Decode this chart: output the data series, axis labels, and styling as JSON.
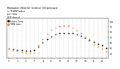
{
  "title": "Milwaukee Weather Outdoor Temperature\nvs THSW Index\nper Hour\n(24 Hours)",
  "background_color": "#ffffff",
  "xlim": [
    0.5,
    24.5
  ],
  "ylim": [
    30,
    105
  ],
  "temp_hours": [
    1,
    2,
    3,
    4,
    5,
    6,
    7,
    8,
    9,
    10,
    11,
    12,
    13,
    14,
    15,
    16,
    17,
    18,
    19,
    20,
    21,
    22,
    23,
    24
  ],
  "temp_values": [
    48,
    47,
    46,
    45,
    44,
    44,
    45,
    52,
    60,
    66,
    71,
    75,
    77,
    78,
    78,
    77,
    75,
    72,
    68,
    65,
    61,
    57,
    54,
    50
  ],
  "thsw_hours": [
    1,
    2,
    3,
    4,
    5,
    6,
    7,
    8,
    9,
    10,
    11,
    12,
    13,
    14,
    15,
    16,
    17,
    18,
    19,
    20,
    21,
    22,
    23,
    24
  ],
  "thsw_values": [
    48,
    46,
    44,
    42,
    41,
    40,
    41,
    54,
    66,
    76,
    84,
    88,
    90,
    91,
    91,
    88,
    83,
    78,
    70,
    63,
    56,
    52,
    48,
    43
  ],
  "temp_color": "#000000",
  "thsw_orange": "#ff8800",
  "thsw_red": "#ff0000",
  "thsw_red_hours": [
    13,
    14,
    15
  ],
  "grid_color": "#aaaaaa",
  "y_ticks": [
    40,
    50,
    60,
    70,
    80,
    90,
    100
  ],
  "x_tick_hours": [
    1,
    3,
    5,
    7,
    9,
    11,
    13,
    15,
    17,
    19,
    21,
    23
  ],
  "x_tick_labels": [
    "1",
    "3",
    "5",
    "7",
    "9",
    "11",
    "13",
    "15",
    "17",
    "19",
    "21",
    "23"
  ],
  "legend_temp_label": "Outdoor Temp",
  "legend_thsw_label": "THSW Index",
  "dot_size": 2.0
}
